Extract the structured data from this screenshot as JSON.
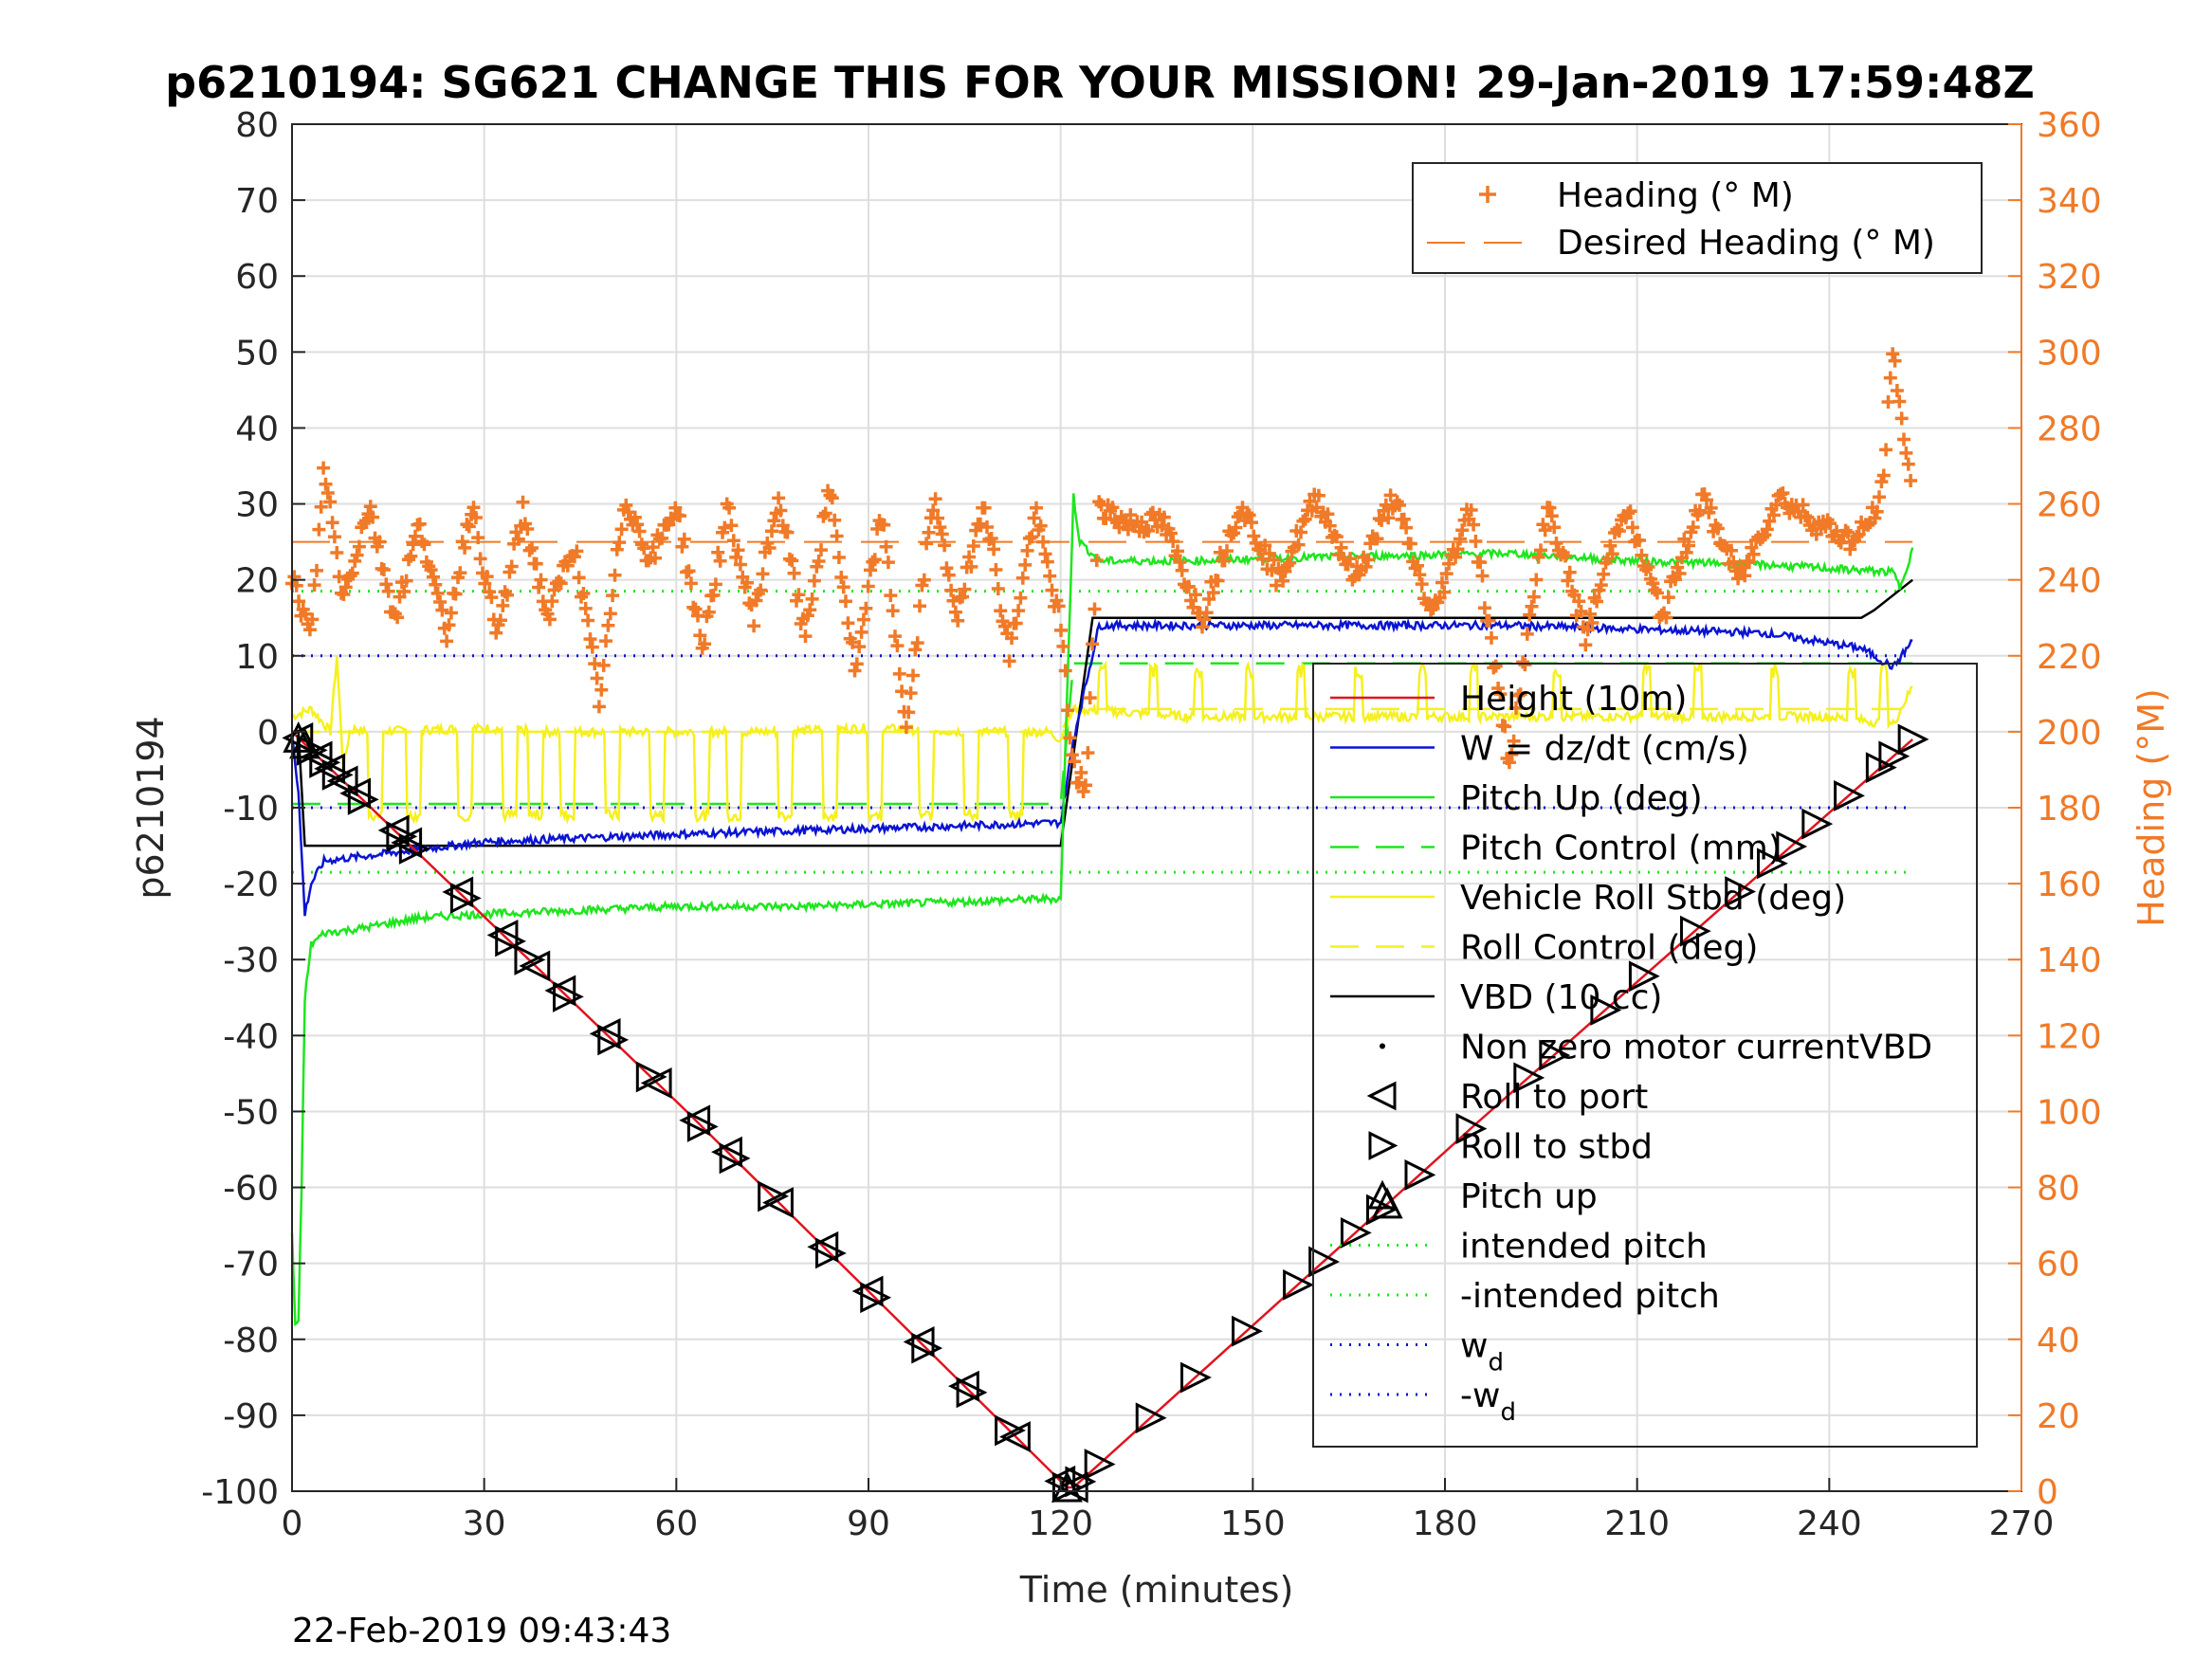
{
  "chart_data": {
    "type": "line",
    "title": "p6210194: SG621 CHANGE THIS FOR YOUR MISSION! 29-Jan-2019 17:59:48Z",
    "xlabel": "Time (minutes)",
    "ylabel": "p6210194",
    "ylabel_right": "Heading (°M)",
    "footer": "22-Feb-2019 09:43:43",
    "xlim": [
      0,
      270
    ],
    "ylim": [
      -100,
      80
    ],
    "ylim_right": [
      0,
      360
    ],
    "xticks": [
      "0",
      "30",
      "60",
      "90",
      "120",
      "150",
      "180",
      "210",
      "240",
      "270"
    ],
    "yticks": [
      "80",
      "70",
      "60",
      "50",
      "40",
      "30",
      "20",
      "10",
      "0",
      "-10",
      "-20",
      "-30",
      "-40",
      "-50",
      "-60",
      "-70",
      "-80",
      "-90",
      "-100"
    ],
    "yticks_right": [
      "360",
      "340",
      "320",
      "300",
      "280",
      "260",
      "240",
      "220",
      "200",
      "180",
      "160",
      "140",
      "120",
      "100",
      "80",
      "60",
      "40",
      "20",
      "0"
    ],
    "grid": true,
    "legend_heading": {
      "placement": "top-right",
      "entries": [
        "Heading (° M)",
        "Desired Heading (° M)"
      ]
    },
    "legend_main": {
      "placement": "right",
      "entries": [
        {
          "label": "Height (10m)",
          "color": "#e0141e",
          "style": "solid"
        },
        {
          "label": "W = dz/dt (cm/s)",
          "color": "#0a14d2",
          "style": "solid"
        },
        {
          "label": "Pitch Up (deg)",
          "color": "#1ee61e",
          "style": "solid"
        },
        {
          "label": "Pitch Control (mm)",
          "color": "#1ee61e",
          "style": "dashed"
        },
        {
          "label": "Vehicle Roll Stbd (deg)",
          "color": "#f5f01e",
          "style": "solid"
        },
        {
          "label": "Roll Control (deg)",
          "color": "#f5f01e",
          "style": "dashed"
        },
        {
          "label": "VBD (10 cc)",
          "color": "#000000",
          "style": "solid"
        },
        {
          "label": "Non zero motor currentVBD",
          "color": "#000000",
          "style": "dot-marker"
        },
        {
          "label": "Roll to port",
          "color": "#000000",
          "style": "left-triangle"
        },
        {
          "label": "Roll to stbd",
          "color": "#000000",
          "style": "right-triangle"
        },
        {
          "label": "Pitch up",
          "color": "#000000",
          "style": "up-triangle"
        },
        {
          "label": "intended pitch",
          "color": "#1ee61e",
          "style": "dotted"
        },
        {
          "label": "-intended pitch",
          "color": "#1ee61e",
          "style": "dotted"
        },
        {
          "label": "w",
          "sub": "d",
          "color": "#0a14d2",
          "style": "dotted"
        },
        {
          "label": "-w",
          "sub": "d",
          "color": "#0a14d2",
          "style": "dotted"
        }
      ]
    },
    "reference_lines": {
      "intended_pitch": 18.5,
      "neg_intended_pitch": -18.5,
      "w_d": 10,
      "neg_w_d": -10,
      "desired_heading": 250
    },
    "series": [
      {
        "name": "Height (10m)",
        "x": [
          0,
          61,
          121,
          122,
          185,
          253
        ],
        "y": [
          0,
          -49.5,
          -99.5,
          -99.5,
          -51.5,
          -1
        ]
      },
      {
        "name": "W = dz/dt (cm/s)",
        "x": [
          0,
          1,
          2,
          3,
          5,
          10,
          20,
          30,
          45,
          60,
          80,
          100,
          118,
          120,
          122,
          126,
          130,
          160,
          190,
          210,
          230,
          245,
          250,
          253
        ],
        "y": [
          0,
          -8,
          -24,
          -20,
          -17,
          -16.5,
          -15.5,
          -14.5,
          -14,
          -13.5,
          -13,
          -12.5,
          -12,
          -12,
          -1,
          14,
          14,
          14,
          14,
          13.5,
          13,
          11,
          8.5,
          12
        ]
      },
      {
        "name": "Pitch Up (deg)",
        "x": [
          0,
          0.5,
          1,
          1.5,
          2,
          3,
          5,
          10,
          20,
          30,
          45,
          60,
          80,
          100,
          118,
          120,
          122,
          123,
          126,
          140,
          160,
          190,
          210,
          230,
          250,
          251,
          253
        ],
        "y": [
          -66,
          -78,
          -78,
          -60,
          -35,
          -28,
          -26.5,
          -26,
          -24.5,
          -24,
          -23.5,
          -23,
          -23,
          -22.5,
          -22,
          -22,
          31,
          25,
          22.5,
          22.5,
          23,
          23.5,
          22.5,
          22,
          21,
          19,
          24
        ]
      },
      {
        "name": "Pitch Control (mm)",
        "x": [
          0,
          120,
          122,
          253
        ],
        "y": [
          -9.5,
          -9.5,
          9,
          9
        ]
      },
      {
        "name": "Vehicle Roll Stbd (deg)",
        "x": [
          0,
          3,
          6,
          7,
          8,
          9,
          10,
          11,
          30,
          40,
          50,
          60,
          75,
          90,
          105,
          118,
          120,
          122,
          140,
          160,
          180,
          200,
          220,
          240,
          250,
          253
        ],
        "y": [
          2,
          3,
          0,
          10,
          -5,
          0,
          0.5,
          0,
          0.5,
          0,
          0,
          0,
          0,
          0.5,
          0,
          0,
          -1,
          3,
          2,
          2,
          2,
          2,
          2,
          2,
          1,
          6
        ]
      },
      {
        "name": "Roll Control (deg)",
        "x": [
          0,
          120,
          122,
          253
        ],
        "y": [
          0,
          0,
          3,
          3
        ]
      },
      {
        "name": "VBD (10 cc)",
        "x": [
          0,
          1,
          2,
          120,
          125,
          126,
          245,
          247,
          250,
          253
        ],
        "y": [
          0,
          0,
          -15,
          -15,
          15,
          15,
          15,
          16,
          18,
          20
        ]
      },
      {
        "name": "Heading (° M)",
        "x": [
          0,
          3,
          5,
          8,
          12,
          16,
          20,
          24,
          28,
          32,
          36,
          40,
          44,
          48,
          52,
          56,
          60,
          64,
          68,
          72,
          76,
          80,
          84,
          88,
          92,
          96,
          100,
          104,
          108,
          112,
          116,
          120,
          122,
          124,
          126,
          130,
          136,
          142,
          148,
          154,
          160,
          166,
          172,
          178,
          184,
          190,
          196,
          202,
          208,
          214,
          220,
          226,
          232,
          238,
          244,
          248,
          250,
          253
        ],
        "y": [
          240,
          225,
          270,
          235,
          260,
          230,
          255,
          225,
          260,
          225,
          258,
          230,
          250,
          208,
          262,
          245,
          260,
          222,
          258,
          230,
          262,
          225,
          264,
          215,
          258,
          200,
          262,
          230,
          262,
          220,
          258,
          228,
          190,
          185,
          260,
          255,
          255,
          230,
          260,
          240,
          262,
          240,
          262,
          230,
          260,
          192,
          260,
          225,
          260,
          230,
          262,
          240,
          262,
          255,
          250,
          260,
          300,
          260
        ]
      }
    ],
    "markers": {
      "roll_to_port_x": [
        1,
        4,
        6,
        8,
        10,
        16,
        18,
        26,
        33,
        38,
        42,
        49,
        57,
        63,
        68,
        76,
        83,
        90,
        98,
        105,
        113,
        120,
        122
      ],
      "roll_to_stbd_x": [
        3,
        5,
        7,
        11,
        17,
        19,
        27,
        34,
        37,
        43,
        50,
        56,
        64,
        69,
        75,
        84,
        91,
        99,
        106,
        112,
        121,
        123,
        126,
        134,
        141,
        149,
        157,
        161,
        166,
        170,
        176,
        184,
        193,
        197,
        205,
        211,
        219,
        226,
        231,
        234,
        238,
        243,
        248,
        250,
        253
      ],
      "pitch_up_x": [
        1,
        2,
        121,
        171
      ]
    }
  }
}
